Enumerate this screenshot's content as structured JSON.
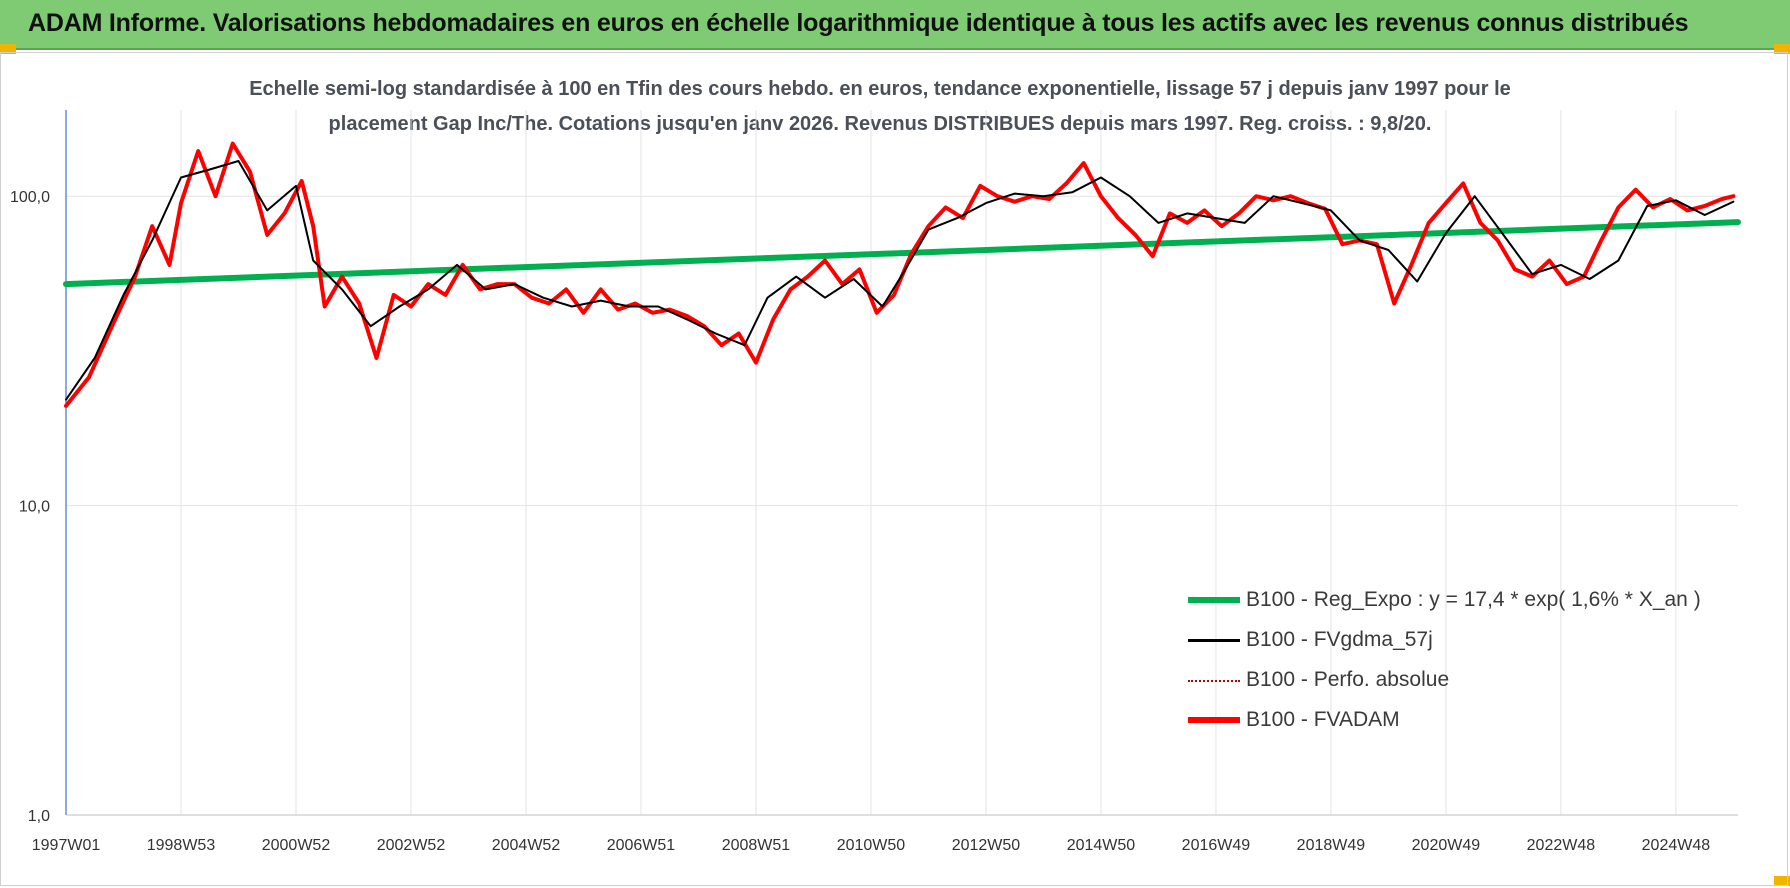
{
  "header": {
    "title": "ADAM Informe. Valorisations hebdomadaires en euros en échelle logarithmique identique à tous les actifs avec les revenus connus distribués"
  },
  "chart_data": {
    "type": "line",
    "subtitle_line1": "Echelle semi-log standardisée à 100 en Tfin des cours hebdo. en euros, tendance exponentielle, lissage 57 j depuis janv 1997 pour le",
    "subtitle_line2": "placement Gap Inc/The. Cotations jusqu'en janv 2026. Revenus DISTRIBUES depuis mars 1997. Reg. croiss. : 9,8/20.",
    "y_scale": "log",
    "ylim": [
      1,
      190
    ],
    "y_ticks": [
      {
        "value": 1,
        "label": "1,0"
      },
      {
        "value": 10,
        "label": "10,0"
      },
      {
        "value": 100,
        "label": "100,0"
      }
    ],
    "x_range": [
      1997.0,
      2026.08
    ],
    "x_ticks": [
      {
        "value": 1997.0,
        "label": "1997W01"
      },
      {
        "value": 1999.0,
        "label": "1998W53"
      },
      {
        "value": 2001.0,
        "label": "2000W52"
      },
      {
        "value": 2003.0,
        "label": "2002W52"
      },
      {
        "value": 2005.0,
        "label": "2004W52"
      },
      {
        "value": 2007.0,
        "label": "2006W51"
      },
      {
        "value": 2009.0,
        "label": "2008W51"
      },
      {
        "value": 2011.0,
        "label": "2010W50"
      },
      {
        "value": 2013.0,
        "label": "2012W50"
      },
      {
        "value": 2015.0,
        "label": "2014W50"
      },
      {
        "value": 2017.0,
        "label": "2016W49"
      },
      {
        "value": 2019.0,
        "label": "2018W49"
      },
      {
        "value": 2021.0,
        "label": "2020W49"
      },
      {
        "value": 2023.0,
        "label": "2022W48"
      },
      {
        "value": 2025.0,
        "label": "2024W48"
      }
    ],
    "grid": "vertical",
    "legend_position": "bottom-right",
    "series": [
      {
        "name": "B100 - Reg_Expo : y = 17,4 * exp( 1,6% *  X_an )",
        "color": "#00b050",
        "style": "thick",
        "x": [
          1997.0,
          2026.08
        ],
        "y": [
          52.0,
          82.5
        ]
      },
      {
        "name": "B100 - FVgdma_57j",
        "color": "#000000",
        "style": "thin",
        "x": [
          1997.0,
          1997.5,
          1998.0,
          1998.5,
          1999.0,
          1999.5,
          2000.0,
          2000.5,
          2001.0,
          2001.3,
          2001.8,
          2002.3,
          2002.8,
          2003.3,
          2003.8,
          2004.3,
          2004.8,
          2005.3,
          2005.8,
          2006.3,
          2006.8,
          2007.3,
          2007.8,
          2008.3,
          2008.8,
          2009.2,
          2009.7,
          2010.2,
          2010.7,
          2011.2,
          2011.6,
          2012.0,
          2012.5,
          2013.0,
          2013.5,
          2014.0,
          2014.5,
          2015.0,
          2015.5,
          2016.0,
          2016.5,
          2017.0,
          2017.5,
          2018.0,
          2018.5,
          2019.0,
          2019.5,
          2020.0,
          2020.5,
          2021.0,
          2021.5,
          2022.0,
          2022.5,
          2023.0,
          2023.5,
          2024.0,
          2024.5,
          2025.0,
          2025.5,
          2026.0
        ],
        "y": [
          22.0,
          30.0,
          48.0,
          72.0,
          115.0,
          122.0,
          130.0,
          90.0,
          108.0,
          62.0,
          50.0,
          38.0,
          44.0,
          50.0,
          60.0,
          50.0,
          52.0,
          47.0,
          44.0,
          46.0,
          44.0,
          44.0,
          40.0,
          36.0,
          33.0,
          47.0,
          55.0,
          47.0,
          54.0,
          44.0,
          58.0,
          78.0,
          85.0,
          95.0,
          102.0,
          100.0,
          103.0,
          115.0,
          100.0,
          82.0,
          88.0,
          85.0,
          82.0,
          100.0,
          95.0,
          90.0,
          72.0,
          67.0,
          53.0,
          76.0,
          100.0,
          75.0,
          56.0,
          60.0,
          54.0,
          62.0,
          93.0,
          97.0,
          87.0,
          96.0
        ]
      },
      {
        "name": "B100 - Perfo. absolue",
        "color": "#c00000",
        "style": "dotted",
        "x": [],
        "y": []
      },
      {
        "name": "B100 - FVADAM",
        "color": "#ff0000",
        "style": "thick",
        "x": [
          1997.0,
          1997.4,
          1997.8,
          1998.2,
          1998.5,
          1998.8,
          1999.0,
          1999.3,
          1999.6,
          1999.9,
          2000.2,
          2000.5,
          2000.8,
          2001.1,
          2001.3,
          2001.5,
          2001.8,
          2002.1,
          2002.4,
          2002.7,
          2003.0,
          2003.3,
          2003.6,
          2003.9,
          2004.2,
          2004.5,
          2004.8,
          2005.1,
          2005.4,
          2005.7,
          2006.0,
          2006.3,
          2006.6,
          2006.9,
          2007.2,
          2007.5,
          2007.8,
          2008.1,
          2008.4,
          2008.7,
          2009.0,
          2009.3,
          2009.6,
          2009.9,
          2010.2,
          2010.5,
          2010.8,
          2011.1,
          2011.4,
          2011.7,
          2012.0,
          2012.3,
          2012.6,
          2012.9,
          2013.2,
          2013.5,
          2013.8,
          2014.1,
          2014.4,
          2014.7,
          2015.0,
          2015.3,
          2015.6,
          2015.9,
          2016.2,
          2016.5,
          2016.8,
          2017.1,
          2017.4,
          2017.7,
          2018.0,
          2018.3,
          2018.6,
          2018.9,
          2019.2,
          2019.5,
          2019.8,
          2020.1,
          2020.4,
          2020.7,
          2021.0,
          2021.3,
          2021.6,
          2021.9,
          2022.2,
          2022.5,
          2022.8,
          2023.1,
          2023.4,
          2023.7,
          2024.0,
          2024.3,
          2024.6,
          2024.9,
          2025.2,
          2025.5,
          2025.8,
          2026.0
        ],
        "y": [
          21.0,
          26.0,
          38.0,
          55.0,
          80.0,
          60.0,
          95.0,
          140.0,
          100.0,
          148.0,
          120.0,
          75.0,
          88.0,
          112.0,
          80.0,
          44.0,
          55.0,
          45.0,
          30.0,
          48.0,
          44.0,
          52.0,
          48.0,
          60.0,
          50.0,
          52.0,
          52.0,
          47.0,
          45.0,
          50.0,
          42.0,
          50.0,
          43.0,
          45.0,
          42.0,
          43.0,
          41.0,
          38.0,
          33.0,
          36.0,
          29.0,
          40.0,
          50.0,
          55.0,
          62.0,
          52.0,
          58.0,
          42.0,
          48.0,
          65.0,
          80.0,
          92.0,
          85.0,
          108.0,
          100.0,
          96.0,
          100.0,
          98.0,
          110.0,
          128.0,
          100.0,
          85.0,
          75.0,
          64.0,
          88.0,
          82.0,
          90.0,
          80.0,
          88.0,
          100.0,
          97.0,
          100.0,
          95.0,
          91.0,
          70.0,
          72.0,
          70.0,
          45.0,
          60.0,
          82.0,
          95.0,
          110.0,
          82.0,
          72.0,
          58.0,
          55.0,
          62.0,
          52.0,
          55.0,
          72.0,
          92.0,
          105.0,
          92.0,
          98.0,
          90.0,
          93.0,
          98.0,
          100.0
        ]
      }
    ]
  }
}
